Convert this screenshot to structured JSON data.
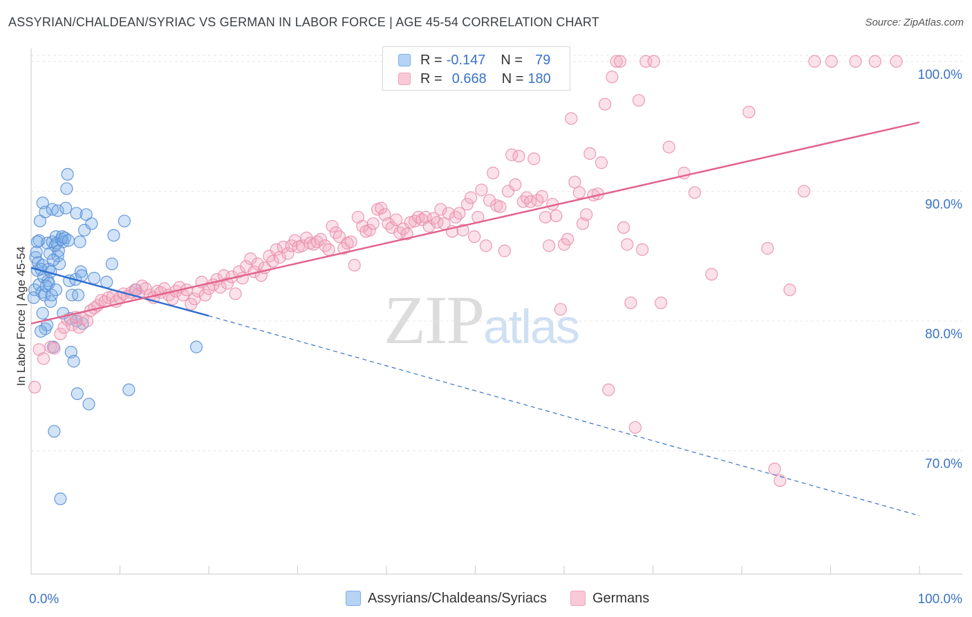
{
  "chart_data": {
    "type": "scatter",
    "title": "ASSYRIAN/CHALDEAN/SYRIAC VS GERMAN IN LABOR FORCE | AGE 45-54 CORRELATION CHART",
    "source": "Source: ZipAtlas.com",
    "ylabel": "In Labor Force | Age 45-54",
    "xlabel": "",
    "xlim": [
      0,
      100
    ],
    "ylim": [
      60.5,
      101
    ],
    "x_tick_labels": [
      "0.0%",
      "100.0%"
    ],
    "y_ticks": [
      70,
      80,
      90,
      100
    ],
    "y_tick_labels": [
      "70.0%",
      "80.0%",
      "90.0%",
      "100.0%"
    ],
    "grid": true,
    "legend_position": "top-center",
    "watermark": {
      "zip": "ZIP",
      "atlas": "atlas"
    },
    "series": [
      {
        "name": "Assyrians/Chaldeans/Syriacs",
        "color": "#7aaee8",
        "stroke": "#5a8fd6",
        "r_label": "R =",
        "r_value": "-0.147",
        "n_label": "N =",
        "n_value": "79",
        "trend": {
          "x0": 0,
          "y0": 84.1,
          "x1": 20,
          "y1": 80.4,
          "dash_to_x": 100,
          "dash_to_y": 65.0
        },
        "points": [
          [
            0.4,
            82.4
          ],
          [
            0.5,
            84.9
          ],
          [
            0.6,
            85.3
          ],
          [
            0.7,
            83.9
          ],
          [
            0.8,
            84.5
          ],
          [
            0.9,
            82.8
          ],
          [
            0.9,
            86.2
          ],
          [
            1.0,
            87.7
          ],
          [
            1.1,
            84.0
          ],
          [
            1.2,
            82.2
          ],
          [
            1.3,
            84.3
          ],
          [
            1.3,
            89.1
          ],
          [
            1.4,
            83.4
          ],
          [
            1.5,
            82.0
          ],
          [
            1.6,
            79.4
          ],
          [
            1.6,
            88.4
          ],
          [
            1.8,
            79.7
          ],
          [
            1.8,
            86.0
          ],
          [
            1.9,
            83.1
          ],
          [
            2.0,
            82.9
          ],
          [
            2.0,
            84.0
          ],
          [
            2.1,
            85.2
          ],
          [
            2.2,
            81.5
          ],
          [
            2.3,
            82.0
          ],
          [
            2.4,
            86.1
          ],
          [
            2.4,
            88.6
          ],
          [
            2.5,
            78.0
          ],
          [
            2.6,
            71.5
          ],
          [
            2.7,
            85.8
          ],
          [
            2.8,
            86.5
          ],
          [
            2.9,
            86.0
          ],
          [
            3.0,
            85.0
          ],
          [
            3.0,
            88.5
          ],
          [
            3.2,
            84.4
          ],
          [
            3.3,
            66.3
          ],
          [
            3.4,
            86.3
          ],
          [
            3.5,
            86.5
          ],
          [
            3.6,
            86.1
          ],
          [
            3.8,
            86.4
          ],
          [
            3.9,
            88.7
          ],
          [
            4.0,
            90.2
          ],
          [
            4.1,
            91.3
          ],
          [
            4.3,
            83.1
          ],
          [
            4.4,
            80.2
          ],
          [
            4.5,
            77.6
          ],
          [
            4.6,
            82.0
          ],
          [
            4.8,
            76.9
          ],
          [
            5.0,
            83.2
          ],
          [
            5.1,
            88.3
          ],
          [
            5.2,
            74.4
          ],
          [
            5.3,
            82.0
          ],
          [
            5.5,
            86.1
          ],
          [
            5.6,
            83.8
          ],
          [
            5.7,
            83.5
          ],
          [
            5.8,
            79.8
          ],
          [
            6.0,
            87.0
          ],
          [
            6.2,
            88.2
          ],
          [
            6.5,
            73.6
          ],
          [
            6.8,
            87.5
          ],
          [
            7.1,
            83.3
          ],
          [
            8.5,
            83.0
          ],
          [
            9.1,
            84.4
          ],
          [
            9.3,
            86.6
          ],
          [
            10.5,
            87.7
          ],
          [
            11.0,
            74.7
          ],
          [
            11.8,
            82.4
          ],
          [
            18.6,
            78.0
          ],
          [
            1.3,
            80.6
          ],
          [
            2.2,
            83.8
          ],
          [
            3.1,
            85.4
          ],
          [
            4.2,
            86.2
          ],
          [
            0.7,
            86.1
          ],
          [
            1.7,
            82.7
          ],
          [
            2.8,
            82.4
          ],
          [
            3.6,
            80.6
          ],
          [
            0.3,
            81.8
          ],
          [
            1.1,
            79.2
          ],
          [
            2.5,
            84.7
          ],
          [
            5.1,
            80.0
          ]
        ]
      },
      {
        "name": "Germans",
        "color": "#f4a8c0",
        "stroke": "#e890ad",
        "r_label": "R =",
        "r_value": "0.668",
        "n_label": "N =",
        "n_value": "180",
        "trend": {
          "x0": 0,
          "y0": 79.8,
          "x1": 100,
          "y1": 95.3
        },
        "points": [
          [
            0.4,
            74.9
          ],
          [
            0.9,
            77.8
          ],
          [
            1.4,
            77.1
          ],
          [
            2.2,
            78.0
          ],
          [
            2.6,
            77.9
          ],
          [
            3.3,
            79.0
          ],
          [
            3.7,
            79.5
          ],
          [
            4.1,
            80.1
          ],
          [
            4.6,
            79.7
          ],
          [
            5.0,
            80.3
          ],
          [
            5.4,
            79.5
          ],
          [
            5.8,
            80.2
          ],
          [
            6.3,
            80.0
          ],
          [
            6.7,
            80.8
          ],
          [
            7.1,
            81.0
          ],
          [
            7.5,
            81.2
          ],
          [
            7.9,
            81.6
          ],
          [
            8.3,
            81.5
          ],
          [
            8.7,
            81.8
          ],
          [
            9.2,
            81.9
          ],
          [
            9.6,
            81.5
          ],
          [
            10.0,
            81.8
          ],
          [
            10.4,
            82.1
          ],
          [
            10.8,
            81.9
          ],
          [
            11.3,
            82.2
          ],
          [
            11.7,
            82.4
          ],
          [
            12.1,
            82.1
          ],
          [
            12.5,
            82.7
          ],
          [
            12.9,
            82.5
          ],
          [
            13.4,
            82.0
          ],
          [
            13.8,
            81.8
          ],
          [
            14.2,
            82.3
          ],
          [
            14.6,
            82.2
          ],
          [
            15.0,
            82.5
          ],
          [
            15.5,
            82.0
          ],
          [
            15.9,
            81.7
          ],
          [
            16.3,
            82.3
          ],
          [
            16.7,
            82.6
          ],
          [
            17.1,
            82.0
          ],
          [
            17.5,
            82.4
          ],
          [
            18.0,
            81.3
          ],
          [
            18.4,
            81.7
          ],
          [
            18.8,
            82.3
          ],
          [
            19.2,
            83.0
          ],
          [
            19.6,
            82.0
          ],
          [
            20.0,
            82.5
          ],
          [
            20.5,
            82.8
          ],
          [
            20.9,
            83.2
          ],
          [
            21.3,
            82.6
          ],
          [
            21.7,
            83.5
          ],
          [
            22.1,
            82.9
          ],
          [
            22.6,
            83.4
          ],
          [
            23.0,
            82.1
          ],
          [
            23.4,
            83.8
          ],
          [
            23.8,
            83.3
          ],
          [
            24.2,
            84.2
          ],
          [
            24.7,
            84.8
          ],
          [
            25.1,
            83.8
          ],
          [
            25.5,
            84.4
          ],
          [
            25.9,
            83.5
          ],
          [
            26.3,
            84.1
          ],
          [
            26.8,
            85.0
          ],
          [
            27.2,
            84.6
          ],
          [
            27.6,
            85.5
          ],
          [
            28.0,
            84.9
          ],
          [
            28.4,
            85.7
          ],
          [
            28.9,
            85.2
          ],
          [
            29.3,
            85.8
          ],
          [
            29.7,
            86.2
          ],
          [
            30.1,
            85.7
          ],
          [
            30.5,
            85.8
          ],
          [
            31.0,
            86.4
          ],
          [
            31.4,
            86.0
          ],
          [
            31.8,
            85.9
          ],
          [
            32.2,
            86.1
          ],
          [
            32.6,
            86.3
          ],
          [
            33.1,
            85.8
          ],
          [
            33.5,
            85.5
          ],
          [
            33.9,
            87.3
          ],
          [
            34.3,
            86.8
          ],
          [
            34.7,
            86.5
          ],
          [
            35.2,
            85.6
          ],
          [
            35.6,
            86.0
          ],
          [
            36.0,
            86.1
          ],
          [
            36.4,
            84.3
          ],
          [
            36.8,
            88.0
          ],
          [
            37.3,
            87.3
          ],
          [
            37.7,
            86.9
          ],
          [
            38.1,
            87.0
          ],
          [
            38.5,
            87.5
          ],
          [
            39.0,
            88.6
          ],
          [
            39.4,
            88.7
          ],
          [
            39.8,
            88.2
          ],
          [
            40.2,
            87.5
          ],
          [
            40.6,
            87.2
          ],
          [
            41.1,
            87.8
          ],
          [
            41.5,
            86.8
          ],
          [
            41.9,
            87.1
          ],
          [
            42.3,
            86.7
          ],
          [
            42.7,
            87.6
          ],
          [
            43.2,
            87.7
          ],
          [
            43.6,
            88.0
          ],
          [
            44.0,
            87.8
          ],
          [
            44.4,
            88.0
          ],
          [
            44.8,
            87.3
          ],
          [
            45.3,
            87.9
          ],
          [
            45.7,
            87.6
          ],
          [
            46.1,
            88.6
          ],
          [
            46.5,
            87.5
          ],
          [
            47.0,
            88.3
          ],
          [
            47.4,
            86.9
          ],
          [
            47.8,
            88.0
          ],
          [
            48.2,
            88.3
          ],
          [
            48.6,
            87.0
          ],
          [
            49.1,
            89.0
          ],
          [
            49.5,
            89.5
          ],
          [
            49.9,
            86.5
          ],
          [
            50.3,
            88.0
          ],
          [
            50.7,
            90.1
          ],
          [
            51.2,
            85.8
          ],
          [
            51.6,
            89.3
          ],
          [
            52.0,
            91.4
          ],
          [
            52.4,
            88.9
          ],
          [
            52.8,
            88.8
          ],
          [
            53.3,
            85.4
          ],
          [
            53.7,
            90.0
          ],
          [
            54.1,
            92.8
          ],
          [
            54.5,
            90.5
          ],
          [
            54.9,
            92.7
          ],
          [
            55.4,
            89.2
          ],
          [
            55.8,
            89.5
          ],
          [
            56.2,
            89.2
          ],
          [
            56.6,
            92.5
          ],
          [
            57.0,
            89.3
          ],
          [
            57.5,
            89.6
          ],
          [
            57.9,
            88.0
          ],
          [
            58.3,
            85.8
          ],
          [
            58.7,
            89.0
          ],
          [
            59.1,
            88.1
          ],
          [
            59.6,
            80.9
          ],
          [
            60.0,
            85.9
          ],
          [
            60.4,
            86.3
          ],
          [
            60.8,
            95.6
          ],
          [
            61.2,
            90.7
          ],
          [
            61.7,
            89.9
          ],
          [
            62.1,
            87.5
          ],
          [
            62.5,
            88.2
          ],
          [
            62.9,
            92.9
          ],
          [
            63.3,
            89.7
          ],
          [
            63.8,
            89.8
          ],
          [
            64.2,
            92.2
          ],
          [
            64.6,
            96.7
          ],
          [
            65.0,
            74.7
          ],
          [
            65.4,
            98.8
          ],
          [
            65.9,
            100.0
          ],
          [
            66.3,
            100.0
          ],
          [
            66.7,
            87.2
          ],
          [
            67.1,
            85.9
          ],
          [
            67.5,
            81.4
          ],
          [
            68.0,
            71.8
          ],
          [
            68.4,
            97.0
          ],
          [
            68.8,
            85.5
          ],
          [
            69.2,
            100.0
          ],
          [
            70.1,
            100.0
          ],
          [
            70.9,
            81.4
          ],
          [
            71.8,
            93.4
          ],
          [
            73.5,
            91.4
          ],
          [
            74.7,
            89.9
          ],
          [
            76.6,
            83.6
          ],
          [
            80.8,
            96.1
          ],
          [
            82.9,
            85.6
          ],
          [
            83.7,
            68.6
          ],
          [
            84.3,
            67.7
          ],
          [
            85.4,
            82.4
          ],
          [
            87.0,
            90.0
          ],
          [
            88.2,
            100.0
          ],
          [
            90.1,
            100.0
          ],
          [
            92.8,
            100.0
          ],
          [
            95.0,
            100.0
          ],
          [
            97.4,
            100.0
          ]
        ]
      }
    ]
  }
}
